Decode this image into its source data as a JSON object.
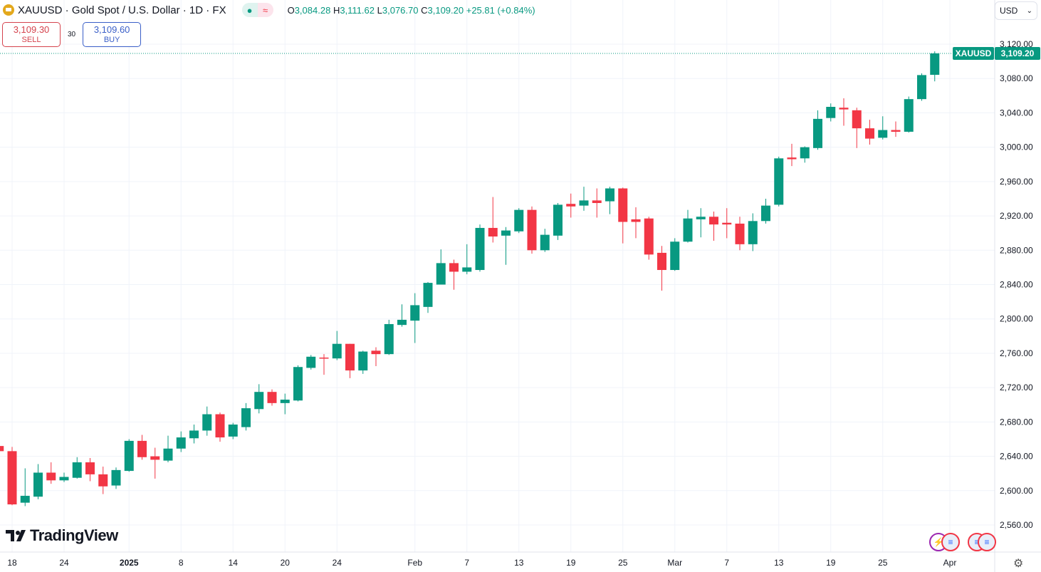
{
  "header": {
    "symbol_title": "XAUUSD · Gold Spot / U.S. Dollar · 1D · FX",
    "ohlc": {
      "o_label": "O",
      "o": "3,084.28",
      "h_label": "H",
      "h": "3,111.62",
      "l_label": "L",
      "l": "3,076.70",
      "c_label": "C",
      "c": "3,109.20",
      "change": "+25.81 (+0.84%)"
    },
    "market_status_icon": "market-open-dot-icon",
    "delayed_icon": "approx-icon"
  },
  "trade": {
    "sell_price": "3,109.30",
    "sell_label": "SELL",
    "spread": "30",
    "buy_price": "3,109.60",
    "buy_label": "BUY"
  },
  "currency_select": "USD",
  "price_tag": {
    "symbol": "XAUUSD",
    "price": "3,109.20"
  },
  "logo": "TradingView",
  "colors": {
    "up": "#089981",
    "down": "#f23645",
    "grid": "#f0f3fa"
  },
  "chart_data": {
    "type": "candlestick",
    "title": "XAUUSD · Gold Spot / U.S. Dollar · 1D · FX",
    "ylim": [
      2540,
      3140
    ],
    "y_ticks": [
      "3,120.00",
      "3,080.00",
      "3,040.00",
      "3,000.00",
      "2,960.00",
      "2,920.00",
      "2,880.00",
      "2,840.00",
      "2,800.00",
      "2,760.00",
      "2,720.00",
      "2,680.00",
      "2,640.00",
      "2,600.00",
      "2,560.00"
    ],
    "x_ticks": [
      {
        "label": "18",
        "date": "2024-12-18"
      },
      {
        "label": "24",
        "date": "2024-12-24"
      },
      {
        "label": "2025",
        "date": "2025-01-02"
      },
      {
        "label": "8",
        "date": "2025-01-08"
      },
      {
        "label": "14",
        "date": "2025-01-14"
      },
      {
        "label": "20",
        "date": "2025-01-20"
      },
      {
        "label": "24",
        "date": "2025-01-24"
      },
      {
        "label": "Feb",
        "date": "2025-02-03"
      },
      {
        "label": "7",
        "date": "2025-02-07"
      },
      {
        "label": "13",
        "date": "2025-02-13"
      },
      {
        "label": "19",
        "date": "2025-02-19"
      },
      {
        "label": "25",
        "date": "2025-02-25"
      },
      {
        "label": "Mar",
        "date": "2025-03-03"
      },
      {
        "label": "7",
        "date": "2025-03-07"
      },
      {
        "label": "13",
        "date": "2025-03-13"
      },
      {
        "label": "19",
        "date": "2025-03-19"
      },
      {
        "label": "25",
        "date": "2025-03-25"
      },
      {
        "label": "Apr",
        "date": "2025-04-01"
      }
    ],
    "last_price": 3109.2,
    "candles": [
      [
        "2024-12-17",
        2652,
        2656,
        2643,
        2646
      ],
      [
        "2024-12-18",
        2646,
        2651,
        2583,
        2584
      ],
      [
        "2024-12-19",
        2586,
        2626,
        2582,
        2594
      ],
      [
        "2024-12-20",
        2593,
        2631,
        2590,
        2621
      ],
      [
        "2024-12-23",
        2621,
        2633,
        2608,
        2612
      ],
      [
        "2024-12-24",
        2612,
        2621,
        2610,
        2616
      ],
      [
        "2024-12-26",
        2615,
        2639,
        2614,
        2633
      ],
      [
        "2024-12-27",
        2633,
        2638,
        2611,
        2619
      ],
      [
        "2024-12-30",
        2619,
        2628,
        2596,
        2605
      ],
      [
        "2024-12-31",
        2606,
        2627,
        2602,
        2624
      ],
      [
        "2025-01-02",
        2623,
        2660,
        2622,
        2658
      ],
      [
        "2025-01-03",
        2658,
        2665,
        2636,
        2639
      ],
      [
        "2025-01-06",
        2640,
        2650,
        2614,
        2636
      ],
      [
        "2025-01-07",
        2635,
        2664,
        2633,
        2649
      ],
      [
        "2025-01-08",
        2649,
        2669,
        2645,
        2662
      ],
      [
        "2025-01-09",
        2661,
        2677,
        2655,
        2670
      ],
      [
        "2025-01-10",
        2670,
        2698,
        2664,
        2689
      ],
      [
        "2025-01-13",
        2689,
        2691,
        2657,
        2662
      ],
      [
        "2025-01-14",
        2663,
        2679,
        2660,
        2677
      ],
      [
        "2025-01-15",
        2674,
        2702,
        2670,
        2696
      ],
      [
        "2025-01-16",
        2695,
        2724,
        2690,
        2715
      ],
      [
        "2025-01-17",
        2715,
        2718,
        2699,
        2702
      ],
      [
        "2025-01-20",
        2702,
        2713,
        2689,
        2706
      ],
      [
        "2025-01-21",
        2705,
        2746,
        2704,
        2744
      ],
      [
        "2025-01-22",
        2743,
        2758,
        2741,
        2756
      ],
      [
        "2025-01-23",
        2755,
        2759,
        2735,
        2754
      ],
      [
        "2025-01-24",
        2754,
        2786,
        2752,
        2771
      ],
      [
        "2025-01-27",
        2771,
        2771,
        2731,
        2740
      ],
      [
        "2025-01-28",
        2740,
        2763,
        2736,
        2762
      ],
      [
        "2025-01-29",
        2763,
        2767,
        2745,
        2759
      ],
      [
        "2025-01-30",
        2759,
        2799,
        2758,
        2794
      ],
      [
        "2025-01-31",
        2793,
        2817,
        2791,
        2799
      ],
      [
        "2025-02-03",
        2798,
        2830,
        2772,
        2816
      ],
      [
        "2025-02-04",
        2814,
        2843,
        2807,
        2842
      ],
      [
        "2025-02-05",
        2840,
        2881,
        2840,
        2865
      ],
      [
        "2025-02-06",
        2865,
        2869,
        2834,
        2855
      ],
      [
        "2025-02-07",
        2855,
        2887,
        2852,
        2860
      ],
      [
        "2025-02-10",
        2857,
        2910,
        2855,
        2906
      ],
      [
        "2025-02-11",
        2906,
        2942,
        2889,
        2896
      ],
      [
        "2025-02-12",
        2897,
        2907,
        2863,
        2903
      ],
      [
        "2025-02-13",
        2902,
        2929,
        2900,
        2927
      ],
      [
        "2025-02-14",
        2927,
        2931,
        2876,
        2880
      ],
      [
        "2025-02-17",
        2880,
        2905,
        2878,
        2898
      ],
      [
        "2025-02-18",
        2897,
        2935,
        2892,
        2933
      ],
      [
        "2025-02-19",
        2934,
        2946,
        2918,
        2931
      ],
      [
        "2025-02-20",
        2932,
        2954,
        2926,
        2938
      ],
      [
        "2025-02-21",
        2938,
        2952,
        2918,
        2935
      ],
      [
        "2025-02-24",
        2937,
        2954,
        2922,
        2952
      ],
      [
        "2025-02-25",
        2952,
        2953,
        2888,
        2913
      ],
      [
        "2025-02-26",
        2916,
        2930,
        2894,
        2913
      ],
      [
        "2025-02-27",
        2917,
        2919,
        2869,
        2875
      ],
      [
        "2025-02-28",
        2877,
        2885,
        2833,
        2857
      ],
      [
        "2025-03-03",
        2857,
        2894,
        2856,
        2890
      ],
      [
        "2025-03-04",
        2890,
        2927,
        2889,
        2917
      ],
      [
        "2025-03-05",
        2916,
        2929,
        2895,
        2919
      ],
      [
        "2025-03-06",
        2919,
        2925,
        2891,
        2910
      ],
      [
        "2025-03-07",
        2912,
        2929,
        2894,
        2910
      ],
      [
        "2025-03-10",
        2911,
        2919,
        2880,
        2887
      ],
      [
        "2025-03-11",
        2887,
        2923,
        2879,
        2914
      ],
      [
        "2025-03-12",
        2914,
        2940,
        2911,
        2932
      ],
      [
        "2025-03-13",
        2933,
        2989,
        2931,
        2987
      ],
      [
        "2025-03-14",
        2988,
        3004,
        2978,
        2986
      ],
      [
        "2025-03-17",
        2987,
        3001,
        2982,
        3000
      ],
      [
        "2025-03-18",
        2999,
        3043,
        2997,
        3033
      ],
      [
        "2025-03-19",
        3034,
        3051,
        3030,
        3047
      ],
      [
        "2025-03-20",
        3046,
        3057,
        3025,
        3044
      ],
      [
        "2025-03-21",
        3043,
        3046,
        2999,
        3022
      ],
      [
        "2025-03-24",
        3022,
        3032,
        3003,
        3010
      ],
      [
        "2025-03-25",
        3011,
        3036,
        3009,
        3020
      ],
      [
        "2025-03-26",
        3020,
        3030,
        3012,
        3018
      ],
      [
        "2025-03-27",
        3018,
        3059,
        3017,
        3056
      ],
      [
        "2025-03-28",
        3056,
        3086,
        3054,
        3084
      ],
      [
        "2025-03-31",
        3084.28,
        3111.62,
        3076.7,
        3109.2
      ]
    ]
  }
}
